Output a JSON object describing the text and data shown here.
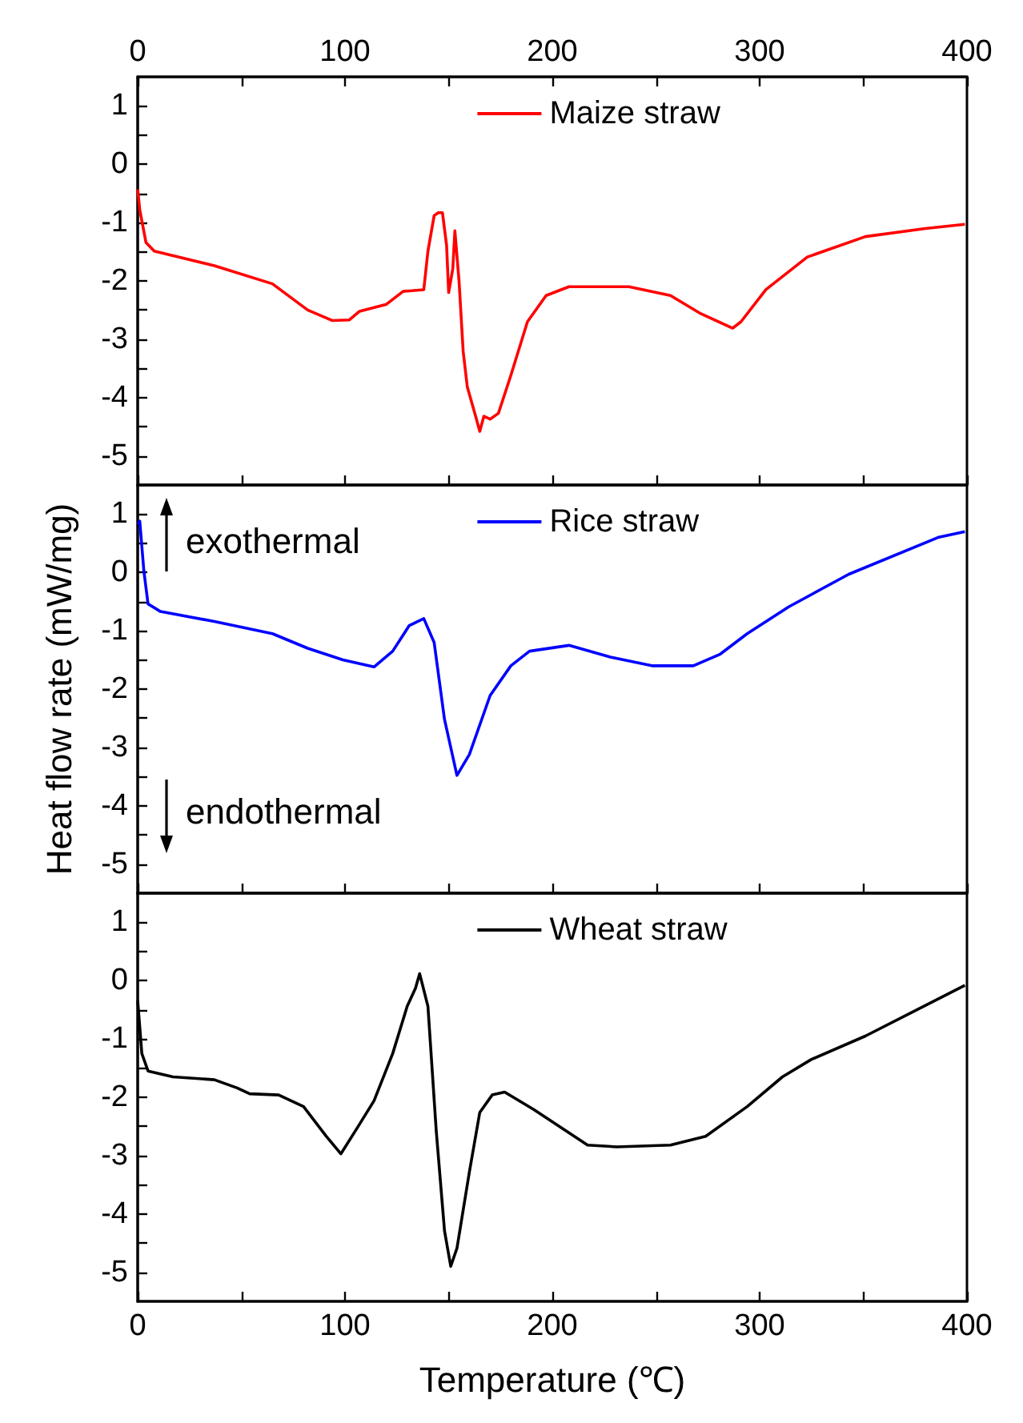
{
  "chart_data": [
    {
      "type": "line",
      "xlim": [
        0,
        400
      ],
      "xticks": [
        0,
        {
          "value": 50,
          "label": null
        },
        100,
        {
          "value": 150,
          "label": null
        },
        200,
        {
          "value": 250,
          "label": null
        },
        300,
        {
          "value": 350,
          "label": null
        },
        400
      ],
      "x2lim": [
        0,
        400
      ],
      "x2ticks": [
        0,
        {
          "value": 50,
          "label": null
        },
        100,
        {
          "value": 150,
          "label": null
        },
        200,
        {
          "value": 250,
          "label": null
        },
        300,
        {
          "value": 350,
          "label": null
        },
        400
      ],
      "ylim": [
        -5.5,
        1.5
      ],
      "yticks": [
        -5,
        {
          "value": -4.5,
          "label": null
        },
        -4,
        {
          "value": -3.5,
          "label": null
        },
        -3,
        {
          "value": -2.5,
          "label": null
        },
        -2,
        {
          "value": -1.5,
          "label": null
        },
        -1,
        {
          "value": -0.5,
          "label": null
        },
        0,
        {
          "value": 0.5,
          "label": null
        },
        1
      ],
      "tick_labels": "y",
      "legend": "top",
      "series": [
        {
          "name": "Maize straw",
          "color": "#ff0000",
          "x": [
            0,
            1,
            4,
            8,
            37,
            65,
            82,
            94,
            102,
            107,
            120,
            128,
            138,
            140,
            143,
            145,
            147,
            149,
            150,
            152,
            153,
            155,
            157,
            159,
            163,
            165,
            167,
            170,
            174,
            180,
            188,
            197,
            208,
            237,
            257,
            271,
            287,
            291,
            303,
            323,
            351,
            380,
            399
          ],
          "values": [
            -0.43,
            -0.78,
            -1.34,
            -1.49,
            -1.74,
            -2.05,
            -2.5,
            -2.68,
            -2.67,
            -2.52,
            -2.4,
            -2.18,
            -2.15,
            -1.49,
            -0.88,
            -0.83,
            -0.83,
            -1.39,
            -2.2,
            -1.79,
            -1.14,
            -2.0,
            -3.21,
            -3.82,
            -4.32,
            -4.58,
            -4.32,
            -4.37,
            -4.27,
            -3.62,
            -2.7,
            -2.25,
            -2.1,
            -2.1,
            -2.25,
            -2.55,
            -2.81,
            -2.7,
            -2.15,
            -1.59,
            -1.24,
            -1.1,
            -1.03
          ]
        }
      ]
    },
    {
      "type": "line",
      "xlim": [
        0,
        400
      ],
      "xticks": [
        0,
        {
          "value": 50,
          "label": null
        },
        100,
        {
          "value": 150,
          "label": null
        },
        200,
        {
          "value": 250,
          "label": null
        },
        300,
        {
          "value": 350,
          "label": null
        },
        400
      ],
      "ylim": [
        -5.5,
        1.5
      ],
      "yticks": [
        -5,
        {
          "value": -4.5,
          "label": null
        },
        -4,
        {
          "value": -3.5,
          "label": null
        },
        -3,
        {
          "value": -2.5,
          "label": null
        },
        -2,
        {
          "value": -1.5,
          "label": null
        },
        -1,
        {
          "value": -0.5,
          "label": null
        },
        0,
        {
          "value": 0.5,
          "label": null
        },
        1
      ],
      "tick_labels": "y",
      "legend": "top",
      "ylabel": "Heat flow rate (mW/mg)",
      "annotations": [
        "exothermal",
        "endothermal"
      ],
      "series": [
        {
          "name": "Rice straw",
          "color": "#0000ff",
          "x": [
            0,
            1,
            3,
            5,
            11,
            37,
            65,
            82,
            99,
            114,
            123,
            131,
            138,
            143,
            148,
            154,
            160,
            170,
            180,
            189,
            208,
            228,
            248,
            268,
            281,
            294,
            314,
            343,
            386,
            399
          ],
          "values": [
            0.83,
            0.88,
            0.02,
            -0.54,
            -0.67,
            -0.84,
            -1.05,
            -1.3,
            -1.5,
            -1.62,
            -1.35,
            -0.91,
            -0.79,
            -1.2,
            -2.52,
            -3.48,
            -3.12,
            -2.11,
            -1.6,
            -1.35,
            -1.25,
            -1.45,
            -1.6,
            -1.6,
            -1.4,
            -1.05,
            -0.59,
            -0.03,
            0.6,
            0.7
          ]
        }
      ]
    },
    {
      "type": "line",
      "xlim": [
        0,
        400
      ],
      "xticks": [
        0,
        {
          "value": 50,
          "label": null
        },
        100,
        {
          "value": 150,
          "label": null
        },
        200,
        {
          "value": 250,
          "label": null
        },
        300,
        {
          "value": 350,
          "label": null
        },
        400
      ],
      "ylim": [
        -5.5,
        1.5
      ],
      "yticks": [
        -5,
        {
          "value": -4.5,
          "label": null
        },
        -4,
        {
          "value": -3.5,
          "label": null
        },
        -3,
        {
          "value": -2.5,
          "label": null
        },
        -2,
        {
          "value": -1.5,
          "label": null
        },
        -1,
        {
          "value": -0.5,
          "label": null
        },
        0,
        {
          "value": 0.5,
          "label": null
        },
        1
      ],
      "legend": "top",
      "xlabel": "Temperature (℃)",
      "series": [
        {
          "name": "Wheat straw",
          "color": "#000000",
          "x": [
            0,
            2,
            5,
            17,
            37,
            48,
            54,
            68,
            80,
            91,
            98,
            106,
            114,
            123,
            130,
            134,
            136,
            140,
            144,
            148,
            151,
            154,
            160,
            165,
            171,
            177,
            191,
            217,
            231,
            257,
            274,
            294,
            311,
            325,
            351,
            399
          ],
          "values": [
            -0.34,
            -1.25,
            -1.55,
            -1.65,
            -1.7,
            -1.84,
            -1.94,
            -1.96,
            -2.16,
            -2.67,
            -2.97,
            -2.52,
            -2.06,
            -1.25,
            -0.44,
            -0.13,
            0.12,
            -0.44,
            -2.57,
            -4.29,
            -4.9,
            -4.59,
            -3.28,
            -2.26,
            -1.96,
            -1.91,
            -2.21,
            -2.82,
            -2.85,
            -2.82,
            -2.67,
            -2.16,
            -1.65,
            -1.35,
            -0.95,
            -0.08
          ]
        }
      ]
    }
  ]
}
